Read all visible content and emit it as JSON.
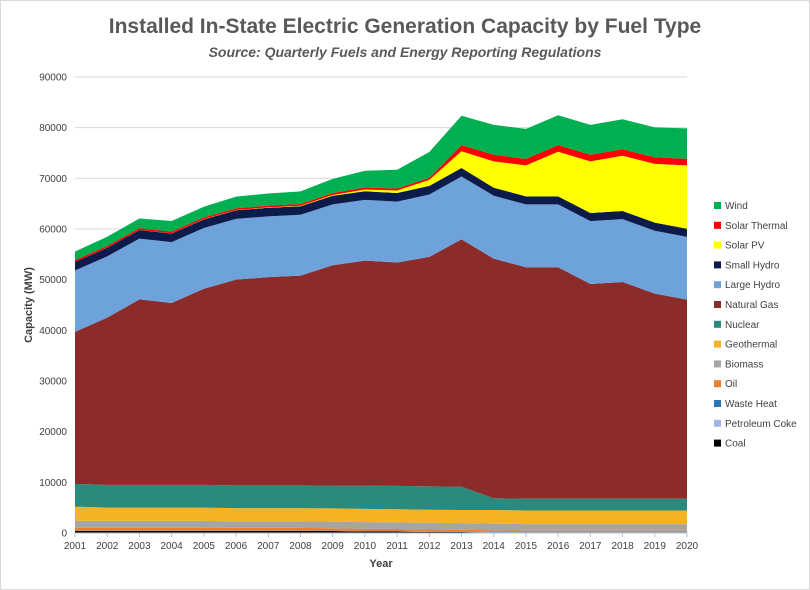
{
  "title": "Installed In-State Electric Generation Capacity by Fuel Type",
  "subtitle": "Source: Quarterly Fuels and Energy Reporting Regulations",
  "chart_data": {
    "type": "area",
    "stacked": true,
    "xlabel": "Year",
    "ylabel": "Capacity (MW)",
    "ylim": [
      0,
      90000
    ],
    "yticks": [
      0,
      10000,
      20000,
      30000,
      40000,
      50000,
      60000,
      70000,
      80000,
      90000
    ],
    "grid": true,
    "legend_position": "right",
    "x": [
      "2001",
      "2002",
      "2003",
      "2004",
      "2005",
      "2006",
      "2007",
      "2008",
      "2009",
      "2010",
      "2011",
      "2012",
      "2013",
      "2014",
      "2015",
      "2016",
      "2017",
      "2018",
      "2019",
      "2020"
    ],
    "series": [
      {
        "name": "Coal",
        "color": "#000000",
        "values": [
          400,
          400,
          400,
          400,
          400,
          400,
          400,
          400,
          400,
          300,
          300,
          200,
          200,
          100,
          50,
          50,
          50,
          50,
          50,
          50
        ]
      },
      {
        "name": "Petroleum Coke",
        "color": "#9fb6e0",
        "values": [
          50,
          50,
          50,
          50,
          50,
          50,
          50,
          50,
          50,
          50,
          50,
          50,
          50,
          50,
          50,
          50,
          50,
          50,
          50,
          50
        ]
      },
      {
        "name": "Waste Heat",
        "color": "#2e75b6",
        "values": [
          50,
          50,
          50,
          50,
          50,
          50,
          50,
          50,
          50,
          50,
          50,
          50,
          50,
          50,
          50,
          50,
          50,
          50,
          50,
          50
        ]
      },
      {
        "name": "Oil",
        "color": "#ed7d31",
        "values": [
          500,
          500,
          500,
          500,
          500,
          500,
          500,
          500,
          450,
          450,
          400,
          400,
          350,
          350,
          300,
          300,
          300,
          300,
          300,
          300
        ]
      },
      {
        "name": "Biomass",
        "color": "#a5a5a5",
        "values": [
          1400,
          1400,
          1400,
          1400,
          1400,
          1300,
          1300,
          1300,
          1300,
          1300,
          1300,
          1300,
          1300,
          1300,
          1300,
          1300,
          1300,
          1300,
          1300,
          1300
        ]
      },
      {
        "name": "Geothermal",
        "color": "#f5b323",
        "values": [
          2800,
          2600,
          2600,
          2600,
          2600,
          2600,
          2600,
          2600,
          2600,
          2600,
          2600,
          2600,
          2600,
          2700,
          2700,
          2700,
          2700,
          2700,
          2700,
          2700
        ]
      },
      {
        "name": "Nuclear",
        "color": "#2a8a7c",
        "values": [
          4500,
          4500,
          4500,
          4500,
          4500,
          4500,
          4500,
          4500,
          4500,
          4600,
          4600,
          4600,
          4600,
          2300,
          2300,
          2300,
          2300,
          2300,
          2300,
          2300
        ]
      },
      {
        "name": "Natural Gas",
        "color": "#8b2c2b",
        "values": [
          30000,
          33000,
          36600,
          35900,
          38700,
          40600,
          41100,
          41400,
          43500,
          44400,
          44100,
          45300,
          48800,
          47300,
          45700,
          45700,
          42400,
          42800,
          40500,
          39300
        ]
      },
      {
        "name": "Large Hydro",
        "color": "#6ea2db",
        "values": [
          12100,
          12100,
          12000,
          12000,
          12000,
          12000,
          12000,
          12000,
          12000,
          12000,
          12000,
          12300,
          12400,
          12400,
          12400,
          12400,
          12400,
          12400,
          12400,
          12400
        ]
      },
      {
        "name": "Small Hydro",
        "color": "#0d1b4b",
        "values": [
          1700,
          1700,
          1700,
          1700,
          1700,
          1700,
          1700,
          1700,
          1700,
          1700,
          1700,
          1700,
          1700,
          1600,
          1600,
          1600,
          1600,
          1600,
          1600,
          1600
        ]
      },
      {
        "name": "Solar PV",
        "color": "#ffff00",
        "values": [
          20,
          20,
          20,
          30,
          40,
          50,
          60,
          80,
          150,
          350,
          500,
          1200,
          3300,
          5200,
          6100,
          8800,
          10200,
          10900,
          11600,
          12500
        ]
      },
      {
        "name": "Solar Thermal",
        "color": "#ff0000",
        "values": [
          350,
          350,
          350,
          350,
          350,
          350,
          350,
          350,
          400,
          400,
          400,
          400,
          1200,
          1300,
          1300,
          1300,
          1300,
          1300,
          1300,
          1300
        ]
      },
      {
        "name": "Wind",
        "color": "#00b050",
        "values": [
          1700,
          1800,
          1900,
          2100,
          2100,
          2300,
          2400,
          2500,
          2800,
          3300,
          3700,
          5100,
          5800,
          5900,
          5900,
          5900,
          5900,
          5900,
          5900,
          6000
        ]
      }
    ],
    "legend_order": [
      "Wind",
      "Solar Thermal",
      "Solar PV",
      "Small Hydro",
      "Large Hydro",
      "Natural Gas",
      "Nuclear",
      "Geothermal",
      "Biomass",
      "Oil",
      "Waste Heat",
      "Petroleum Coke",
      "Coal"
    ]
  }
}
